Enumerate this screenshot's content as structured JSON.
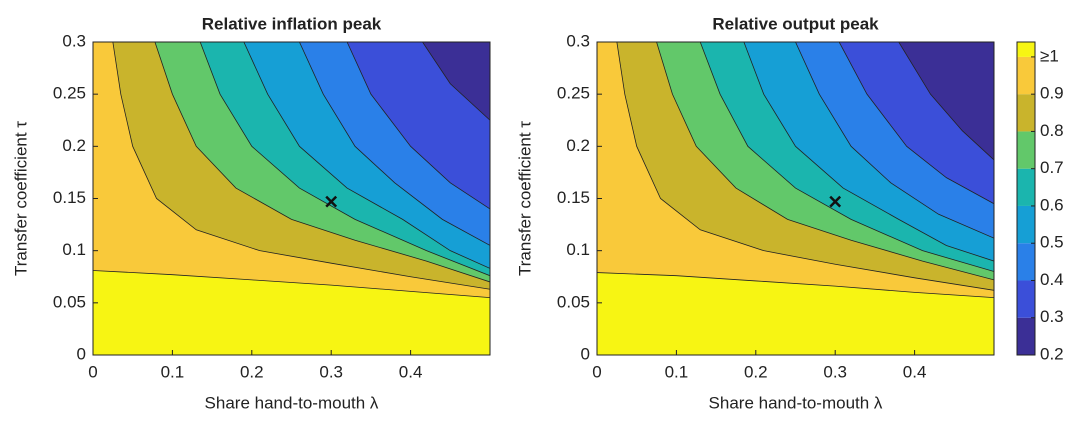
{
  "chart_data": [
    {
      "type": "contour",
      "title": "Relative inflation peak",
      "xlabel": "Share hand-to-mouth λ",
      "ylabel": "Transfer coefficient τ",
      "xlim": [
        0,
        0.5
      ],
      "ylim": [
        0,
        0.3
      ],
      "xticks": [
        0,
        0.1,
        0.2,
        0.3,
        0.4
      ],
      "yticks": [
        0,
        0.05,
        0.1,
        0.15,
        0.2,
        0.25,
        0.3
      ],
      "marker": {
        "x": 0.3,
        "y": 0.147
      },
      "contours": [
        {
          "level": 1,
          "x": [
            0,
            0.1,
            0.2,
            0.3,
            0.4,
            0.5
          ],
          "y": [
            0.081,
            0.077,
            0.072,
            0.067,
            0.061,
            0.055
          ]
        },
        {
          "level": 0.9,
          "x": [
            0.025,
            0.035,
            0.05,
            0.08,
            0.13,
            0.21,
            0.3,
            0.4,
            0.5
          ],
          "y": [
            0.3,
            0.25,
            0.2,
            0.15,
            0.12,
            0.1,
            0.088,
            0.075,
            0.063
          ]
        },
        {
          "level": 0.8,
          "x": [
            0.078,
            0.1,
            0.13,
            0.18,
            0.25,
            0.33,
            0.42,
            0.5
          ],
          "y": [
            0.3,
            0.25,
            0.2,
            0.16,
            0.13,
            0.11,
            0.09,
            0.07
          ]
        },
        {
          "level": 0.7,
          "x": [
            0.135,
            0.16,
            0.2,
            0.26,
            0.33,
            0.42,
            0.5
          ],
          "y": [
            0.3,
            0.25,
            0.2,
            0.16,
            0.13,
            0.1,
            0.076
          ]
        },
        {
          "level": 0.6,
          "x": [
            0.19,
            0.22,
            0.26,
            0.32,
            0.39,
            0.45,
            0.5
          ],
          "y": [
            0.3,
            0.25,
            0.2,
            0.16,
            0.13,
            0.1,
            0.083
          ]
        },
        {
          "level": 0.5,
          "x": [
            0.26,
            0.29,
            0.33,
            0.38,
            0.44,
            0.5
          ],
          "y": [
            0.3,
            0.25,
            0.2,
            0.165,
            0.13,
            0.105
          ]
        },
        {
          "level": 0.4,
          "x": [
            0.32,
            0.35,
            0.4,
            0.45,
            0.5
          ],
          "y": [
            0.3,
            0.25,
            0.2,
            0.165,
            0.14
          ]
        },
        {
          "level": 0.3,
          "x": [
            0.415,
            0.45,
            0.5
          ],
          "y": [
            0.3,
            0.26,
            0.225
          ]
        }
      ]
    },
    {
      "type": "contour",
      "title": "Relative output peak",
      "xlabel": "Share hand-to-mouth λ",
      "ylabel": "Transfer coefficient τ",
      "xlim": [
        0,
        0.5
      ],
      "ylim": [
        0,
        0.3
      ],
      "xticks": [
        0,
        0.1,
        0.2,
        0.3,
        0.4
      ],
      "yticks": [
        0,
        0.05,
        0.1,
        0.15,
        0.2,
        0.25,
        0.3
      ],
      "marker": {
        "x": 0.3,
        "y": 0.147
      },
      "contours": [
        {
          "level": 1,
          "x": [
            0,
            0.1,
            0.2,
            0.3,
            0.4,
            0.5
          ],
          "y": [
            0.079,
            0.076,
            0.071,
            0.066,
            0.06,
            0.055
          ]
        },
        {
          "level": 0.9,
          "x": [
            0.025,
            0.035,
            0.05,
            0.08,
            0.13,
            0.21,
            0.3,
            0.4,
            0.5
          ],
          "y": [
            0.3,
            0.25,
            0.2,
            0.15,
            0.12,
            0.1,
            0.087,
            0.074,
            0.062
          ]
        },
        {
          "level": 0.8,
          "x": [
            0.075,
            0.095,
            0.125,
            0.175,
            0.24,
            0.32,
            0.41,
            0.5
          ],
          "y": [
            0.3,
            0.25,
            0.2,
            0.16,
            0.13,
            0.11,
            0.09,
            0.072
          ]
        },
        {
          "level": 0.7,
          "x": [
            0.13,
            0.155,
            0.19,
            0.25,
            0.32,
            0.41,
            0.5
          ],
          "y": [
            0.3,
            0.25,
            0.2,
            0.16,
            0.13,
            0.1,
            0.08
          ]
        },
        {
          "level": 0.6,
          "x": [
            0.185,
            0.21,
            0.25,
            0.31,
            0.38,
            0.44,
            0.5
          ],
          "y": [
            0.3,
            0.25,
            0.2,
            0.16,
            0.13,
            0.105,
            0.09
          ]
        },
        {
          "level": 0.5,
          "x": [
            0.25,
            0.28,
            0.32,
            0.37,
            0.43,
            0.5
          ],
          "y": [
            0.3,
            0.25,
            0.2,
            0.165,
            0.135,
            0.112
          ]
        },
        {
          "level": 0.4,
          "x": [
            0.305,
            0.34,
            0.39,
            0.44,
            0.5
          ],
          "y": [
            0.3,
            0.25,
            0.2,
            0.17,
            0.145
          ]
        },
        {
          "level": 0.3,
          "x": [
            0.38,
            0.42,
            0.46,
            0.5
          ],
          "y": [
            0.3,
            0.25,
            0.215,
            0.187
          ]
        }
      ],
      "colorbar": {
        "lim": [
          0.2,
          1.04
        ],
        "ticks": [
          0.2,
          0.3,
          0.4,
          0.5,
          0.6,
          0.7,
          0.8,
          0.9,
          {
            "value": 1,
            "label": "≥1"
          }
        ],
        "colors": [
          "#3b2f96",
          "#3b4fd9",
          "#2a80e8",
          "#169fd5",
          "#1bb5ae",
          "#62c86a",
          "#c9b42c",
          "#f9c93a",
          "#f7f513"
        ]
      }
    }
  ]
}
